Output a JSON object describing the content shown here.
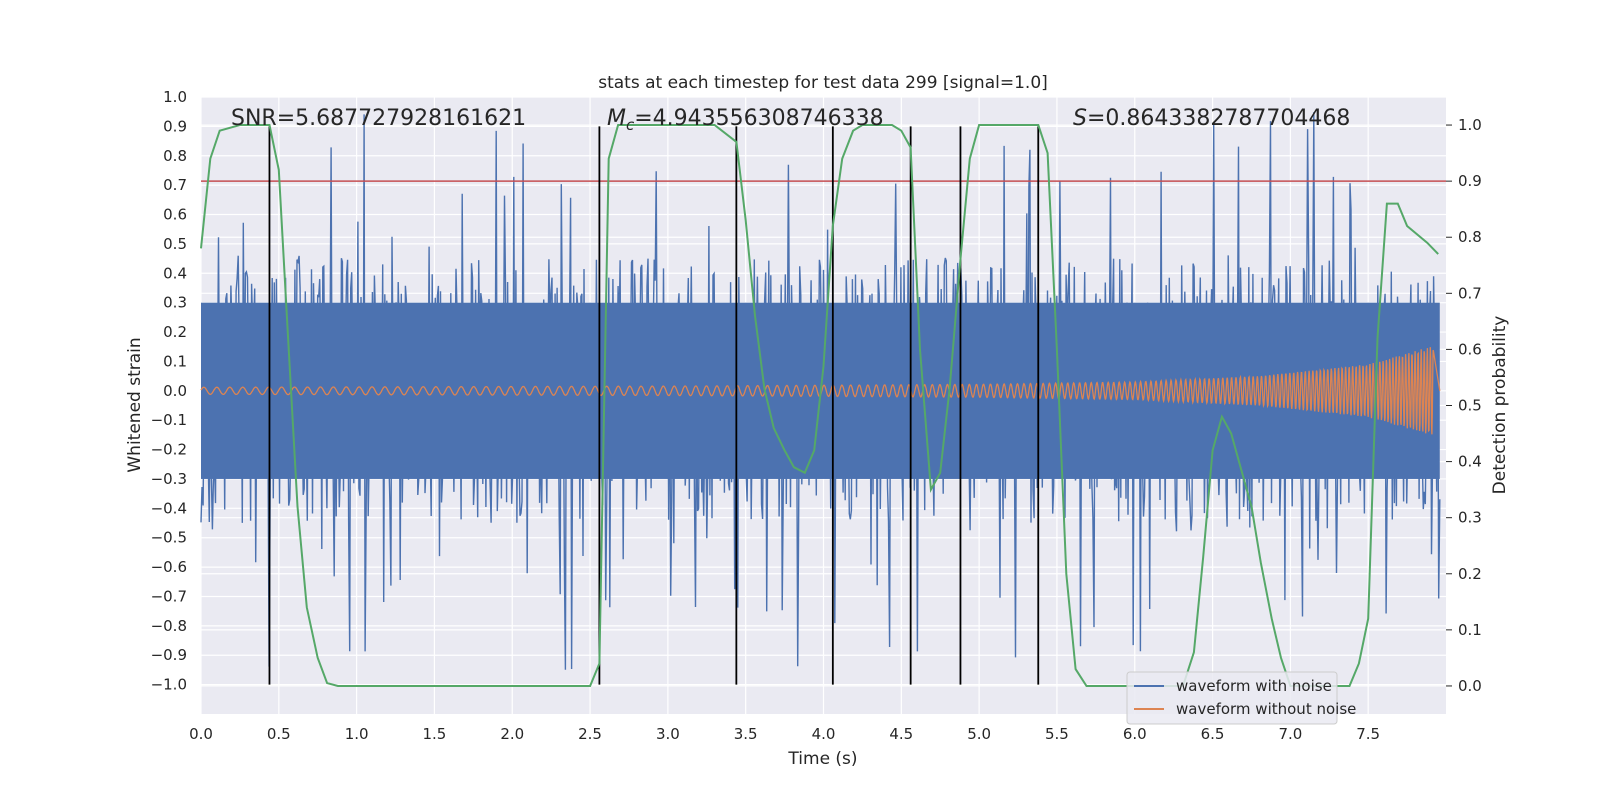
{
  "chart_data": {
    "type": "line",
    "title": "stats at each timestep for test data 299 [signal=1.0]",
    "xlabel": "Time (s)",
    "ylabel": "Whitened strain",
    "y2label": "Detection probability",
    "xlim": [
      0.0,
      8.0
    ],
    "ylim": [
      -1.1,
      1.0
    ],
    "y2lim": [
      -0.05,
      1.05
    ],
    "x_ticks": [
      0.0,
      0.5,
      1.0,
      1.5,
      2.0,
      2.5,
      3.0,
      3.5,
      4.0,
      4.5,
      5.0,
      5.5,
      6.0,
      6.5,
      7.0,
      7.5
    ],
    "x_tick_labels": [
      "0.0",
      "0.5",
      "1.0",
      "1.5",
      "2.0",
      "2.5",
      "3.0",
      "3.5",
      "4.0",
      "4.5",
      "5.0",
      "5.5",
      "6.0",
      "6.5",
      "7.0",
      "7.5"
    ],
    "y_ticks": [
      1.0,
      0.9,
      0.8,
      0.7,
      0.6,
      0.5,
      0.4,
      0.3,
      0.2,
      0.1,
      0.0,
      -0.1,
      -0.2,
      -0.3,
      -0.4,
      -0.5,
      -0.6,
      -0.7,
      -0.8,
      -0.9,
      -1.0
    ],
    "y_tick_labels": [
      "1.0",
      "0.9",
      "0.8",
      "0.7",
      "0.6",
      "0.5",
      "0.4",
      "0.3",
      "0.2",
      "0.1",
      "0.0",
      "−0.1",
      "−0.2",
      "−0.3",
      "−0.4",
      "−0.5",
      "−0.6",
      "−0.7",
      "−0.8",
      "−0.9",
      "−1.0"
    ],
    "y2_ticks": [
      1.0,
      0.9,
      0.8,
      0.7,
      0.6,
      0.5,
      0.4,
      0.3,
      0.2,
      0.1,
      0.0
    ],
    "y2_tick_labels": [
      "1.0",
      "0.9",
      "0.8",
      "0.7",
      "0.6",
      "0.5",
      "0.4",
      "0.3",
      "0.2",
      "0.1",
      "0.0"
    ],
    "stats": {
      "snr": "SNR=5.687727928161621",
      "mc_symbol": "M",
      "mc_subscript": "c",
      "mc_value": "=4.943556308746338",
      "s_symbol": "S",
      "s_value": "=0.8643382787704468"
    },
    "threshold": {
      "y2": 0.9,
      "color": "#c44e52"
    },
    "vertical_lines_x": [
      0.44,
      2.56,
      3.44,
      4.06,
      4.56,
      4.88,
      5.38
    ],
    "vertical_line_range": [
      -1.0,
      0.9
    ],
    "series": [
      {
        "name": "waveform with noise",
        "color": "#4c72b0",
        "noise_envelope_typical": 0.45,
        "noise_peak_max": 0.95
      },
      {
        "name": "waveform without noise",
        "color": "#dd8452",
        "chirp_amplitude": [
          [
            0.0,
            0.012
          ],
          [
            3.0,
            0.016
          ],
          [
            5.0,
            0.022
          ],
          [
            6.0,
            0.03
          ],
          [
            6.8,
            0.05
          ],
          [
            7.5,
            0.09
          ],
          [
            7.9,
            0.15
          ]
        ],
        "merger_time": 7.92
      },
      {
        "name": "Detection probability",
        "color": "#55a868",
        "axis": "y2",
        "x": [
          0.0,
          0.06,
          0.12,
          0.25,
          0.3,
          0.44,
          0.5,
          0.56,
          0.62,
          0.68,
          0.75,
          0.81,
          0.88,
          1.0,
          2.4,
          2.5,
          2.56,
          2.62,
          2.68,
          2.75,
          2.81,
          3.0,
          3.3,
          3.44,
          3.5,
          3.56,
          3.62,
          3.68,
          3.75,
          3.81,
          3.88,
          3.94,
          4.0,
          4.06,
          4.12,
          4.19,
          4.25,
          4.31,
          4.44,
          4.5,
          4.56,
          4.62,
          4.69,
          4.75,
          4.81,
          4.88,
          4.94,
          5.0,
          5.31,
          5.38,
          5.44,
          5.5,
          5.56,
          5.62,
          5.69,
          6.31,
          6.38,
          6.44,
          6.5,
          6.56,
          6.62,
          6.69,
          6.75,
          6.81,
          6.88,
          6.94,
          7.0,
          7.38,
          7.44,
          7.5,
          7.56,
          7.62,
          7.69,
          7.75,
          7.88,
          7.95
        ],
        "y": [
          0.78,
          0.94,
          0.99,
          1.0,
          1.0,
          1.0,
          0.92,
          0.62,
          0.32,
          0.14,
          0.05,
          0.005,
          0.0,
          0.0,
          0.0,
          0.0,
          0.04,
          0.94,
          1.0,
          1.0,
          1.0,
          1.0,
          1.0,
          0.97,
          0.83,
          0.66,
          0.53,
          0.46,
          0.42,
          0.39,
          0.38,
          0.42,
          0.57,
          0.82,
          0.94,
          0.99,
          1.0,
          1.0,
          1.0,
          0.99,
          0.96,
          0.6,
          0.35,
          0.38,
          0.53,
          0.76,
          0.94,
          1.0,
          1.0,
          1.0,
          0.95,
          0.6,
          0.2,
          0.03,
          0.0,
          0.0,
          0.06,
          0.23,
          0.42,
          0.48,
          0.45,
          0.38,
          0.32,
          0.22,
          0.12,
          0.05,
          0.0,
          0.0,
          0.04,
          0.12,
          0.62,
          0.86,
          0.86,
          0.82,
          0.79,
          0.77
        ]
      }
    ]
  }
}
